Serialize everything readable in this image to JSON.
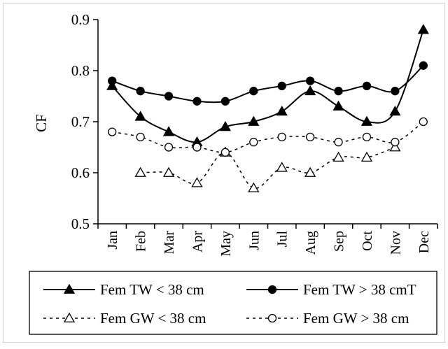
{
  "chart_data": {
    "type": "line",
    "title": "",
    "xlabel": "",
    "ylabel": "CF",
    "categories": [
      "Jan",
      "Feb",
      "Mar",
      "Apr",
      "May",
      "Jun",
      "Jul",
      "Aug",
      "Sep",
      "Oct",
      "Nov",
      "Dec"
    ],
    "ylim": [
      0.5,
      0.9
    ],
    "yticks": [
      "0.5",
      "0.6",
      "0.7",
      "0.8",
      "0.9"
    ],
    "grid": false,
    "legend_position": "bottom",
    "series": [
      {
        "name": "Fem TW < 38 cm",
        "line": "solid",
        "marker": "triangle-filled",
        "values": [
          0.77,
          0.71,
          0.68,
          0.66,
          0.69,
          0.7,
          0.72,
          0.76,
          0.73,
          0.7,
          0.72,
          0.88
        ]
      },
      {
        "name": "Fem TW > 38 cmT",
        "line": "solid",
        "marker": "circle-filled",
        "values": [
          0.78,
          0.76,
          0.75,
          0.74,
          0.74,
          0.76,
          0.77,
          0.78,
          0.76,
          0.77,
          0.76,
          0.81
        ]
      },
      {
        "name": "Fem GW < 38 cm",
        "line": "dashed",
        "marker": "triangle-open",
        "values": [
          null,
          0.6,
          0.6,
          0.58,
          0.64,
          0.57,
          0.61,
          0.6,
          0.63,
          0.63,
          0.65,
          null
        ]
      },
      {
        "name": "Fem GW > 38 cm",
        "line": "dashed",
        "marker": "circle-open",
        "values": [
          0.68,
          0.67,
          0.65,
          0.65,
          0.64,
          0.66,
          0.67,
          0.67,
          0.66,
          0.67,
          0.66,
          0.7
        ]
      }
    ]
  }
}
